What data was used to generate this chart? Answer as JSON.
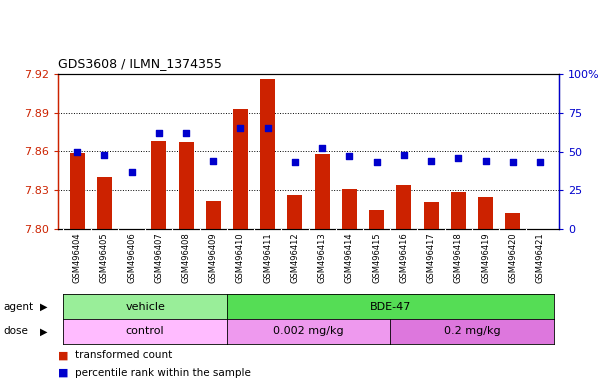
{
  "title": "GDS3608 / ILMN_1374355",
  "samples": [
    "GSM496404",
    "GSM496405",
    "GSM496406",
    "GSM496407",
    "GSM496408",
    "GSM496409",
    "GSM496410",
    "GSM496411",
    "GSM496412",
    "GSM496413",
    "GSM496414",
    "GSM496415",
    "GSM496416",
    "GSM496417",
    "GSM496418",
    "GSM496419",
    "GSM496420",
    "GSM496421"
  ],
  "bar_values": [
    7.859,
    7.84,
    7.8,
    7.868,
    7.867,
    7.822,
    7.893,
    7.916,
    7.826,
    7.858,
    7.831,
    7.815,
    7.834,
    7.821,
    7.829,
    7.825,
    7.812,
    7.8
  ],
  "dot_values": [
    50,
    48,
    37,
    62,
    62,
    44,
    65,
    65,
    43,
    52,
    47,
    43,
    48,
    44,
    46,
    44,
    43,
    43
  ],
  "ymin": 7.8,
  "ymax": 7.92,
  "y2min": 0,
  "y2max": 100,
  "yticks": [
    7.8,
    7.83,
    7.86,
    7.89,
    7.92
  ],
  "y2ticks": [
    0,
    25,
    50,
    75,
    100
  ],
  "bar_color": "#cc2200",
  "dot_color": "#0000cc",
  "plot_bg": "#ffffff",
  "grid_color": "#000000",
  "agent_groups": [
    {
      "label": "vehicle",
      "start": 0,
      "end": 5,
      "color": "#99ee99"
    },
    {
      "label": "BDE-47",
      "start": 6,
      "end": 17,
      "color": "#55dd55"
    }
  ],
  "dose_groups": [
    {
      "label": "control",
      "start": 0,
      "end": 5,
      "color": "#ffbbff"
    },
    {
      "label": "0.002 mg/kg",
      "start": 6,
      "end": 11,
      "color": "#ee99ee"
    },
    {
      "label": "0.2 mg/kg",
      "start": 12,
      "end": 17,
      "color": "#dd77dd"
    }
  ],
  "legend_items": [
    {
      "label": "transformed count",
      "color": "#cc2200"
    },
    {
      "label": "percentile rank within the sample",
      "color": "#0000cc"
    }
  ],
  "xtick_bg": "#d8d8d8"
}
